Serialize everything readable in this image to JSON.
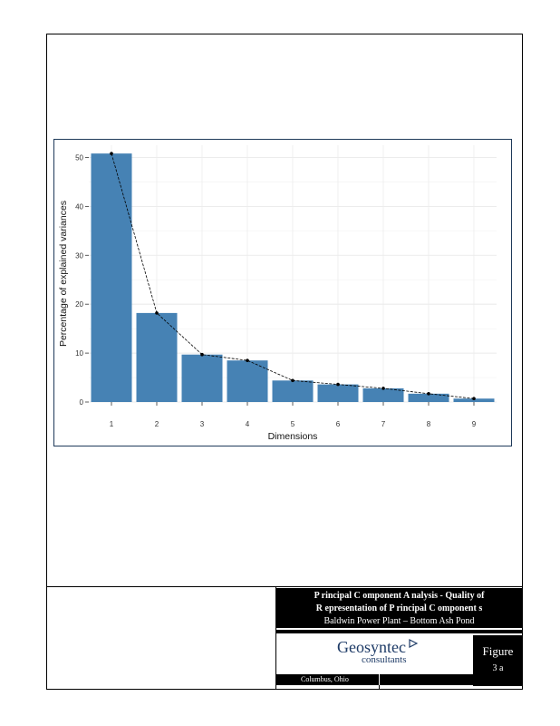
{
  "chart_data": {
    "type": "bar",
    "xlabel": "Dimensions",
    "ylabel": "Percentage of explained variances",
    "categories": [
      "1",
      "2",
      "3",
      "4",
      "5",
      "6",
      "7",
      "8",
      "9"
    ],
    "values": [
      50.8,
      18.2,
      9.7,
      8.5,
      4.4,
      3.6,
      2.8,
      1.7,
      0.7
    ],
    "ylim": [
      0,
      52.5
    ],
    "yticks": [
      0,
      10,
      20,
      30,
      40,
      50
    ],
    "grid": true,
    "line_overlay": true,
    "bar_color": "#4682b4",
    "line_color": "#000000"
  },
  "title_block": {
    "title_line1": "P rincipal C omponent A nalysis - Quality of",
    "title_line2": "R epresentation of P rincipal C omponent s",
    "title_line3": "Baldwin Power Plant – Bottom Ash Pond",
    "company_name": "Geosyntec",
    "company_sub": "consultants",
    "figure_label": "Figure",
    "figure_number": "3 a",
    "location": "Columbus, Ohio"
  },
  "colors": {
    "frame": "#000000",
    "chart_border": "#1f3a5a",
    "logo_text": "#1d3a66"
  }
}
